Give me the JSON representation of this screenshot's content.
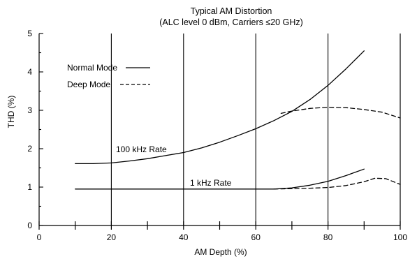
{
  "chart_data": {
    "type": "line",
    "title": "Typical AM Distortion",
    "subtitle": "(ALC level 0 dBm, Carriers ≤20 GHz)",
    "xlabel": "AM Depth (%)",
    "ylabel": "THD (%)",
    "xlim": [
      0,
      100
    ],
    "ylim": [
      0,
      5
    ],
    "x_ticks": [
      0,
      20,
      40,
      60,
      80,
      100
    ],
    "y_ticks": [
      0,
      1,
      2,
      3,
      4,
      5
    ],
    "grid": "vertical lines at x ticks 20, 40, 60, 80",
    "legend_position": "upper-left",
    "legend": [
      {
        "label": "Normal Mode",
        "style": "solid"
      },
      {
        "label": "Deep Mode",
        "style": "dashed"
      }
    ],
    "annotations": [
      "100 kHz Rate",
      "1 kHz Rate"
    ],
    "series": [
      {
        "group": "100 kHz Rate",
        "mode": "Normal Mode",
        "style": "solid",
        "x": [
          10,
          15,
          20,
          25,
          30,
          35,
          40,
          45,
          50,
          55,
          60,
          65,
          70,
          75,
          80,
          85,
          90
        ],
        "y": [
          1.61,
          1.61,
          1.63,
          1.68,
          1.74,
          1.82,
          1.9,
          2.02,
          2.17,
          2.34,
          2.52,
          2.73,
          2.97,
          3.28,
          3.65,
          4.08,
          4.55
        ]
      },
      {
        "group": "100 kHz Rate",
        "mode": "Deep Mode",
        "style": "dashed",
        "x": [
          67,
          70,
          75,
          80,
          85,
          90,
          95,
          100
        ],
        "y": [
          2.92,
          2.98,
          3.05,
          3.08,
          3.07,
          3.02,
          2.95,
          2.8
        ]
      },
      {
        "group": "1 kHz Rate",
        "mode": "Normal Mode",
        "style": "solid",
        "x": [
          10,
          20,
          30,
          40,
          50,
          60,
          65,
          70,
          75,
          80,
          85,
          90
        ],
        "y": [
          0.95,
          0.95,
          0.95,
          0.95,
          0.95,
          0.95,
          0.95,
          0.98,
          1.05,
          1.15,
          1.3,
          1.47
        ]
      },
      {
        "group": "1 kHz Rate",
        "mode": "Deep Mode",
        "style": "dashed",
        "x": [
          65,
          70,
          75,
          80,
          85,
          90,
          93,
          96,
          100
        ],
        "y": [
          0.95,
          0.96,
          0.97,
          0.99,
          1.04,
          1.14,
          1.23,
          1.22,
          1.07
        ]
      }
    ]
  }
}
